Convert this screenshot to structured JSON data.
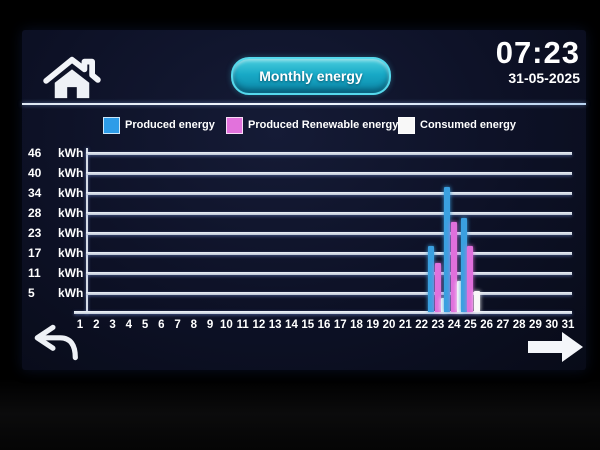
{
  "header": {
    "title": "Monthly energy",
    "time": "07:23",
    "date": "31-05-2025"
  },
  "legend": {
    "items": [
      {
        "label": "Produced energy",
        "color": "#2d9ce8"
      },
      {
        "label": "Produced Renewable energy",
        "color": "#e272dc"
      },
      {
        "label": "Consumed energy",
        "color": "#f8f8f8"
      }
    ]
  },
  "chart_data": {
    "type": "bar",
    "title": "Monthly energy",
    "grid": true,
    "legend_position": "top",
    "y_axis": {
      "unit": "kWh",
      "min": 0,
      "max": 46,
      "tick_values": [
        46,
        40,
        34,
        28,
        23,
        17,
        11,
        5
      ]
    },
    "categories": [
      "1",
      "2",
      "3",
      "4",
      "5",
      "6",
      "7",
      "8",
      "9",
      "10",
      "11",
      "12",
      "13",
      "14",
      "15",
      "16",
      "17",
      "18",
      "19",
      "20",
      "21",
      "22",
      "23",
      "24",
      "25",
      "26",
      "27",
      "28",
      "29",
      "30",
      "31"
    ],
    "series": [
      {
        "name": "Produced energy",
        "color": "#3aa0e0",
        "values_by_day": {
          "23": 19,
          "24": 36,
          "25": 27
        }
      },
      {
        "name": "Produced Renewable energy",
        "color": "#e070dc",
        "values_by_day": {
          "23": 14,
          "24": 26,
          "25": 19
        }
      },
      {
        "name": "Consumed energy",
        "color": "#f8f8f8",
        "values_by_day": {
          "23": 4,
          "24": 9,
          "25": 6
        }
      }
    ]
  },
  "icons": {
    "home": "home-icon",
    "back": "back-arrow-icon",
    "forward": "forward-arrow-icon"
  }
}
